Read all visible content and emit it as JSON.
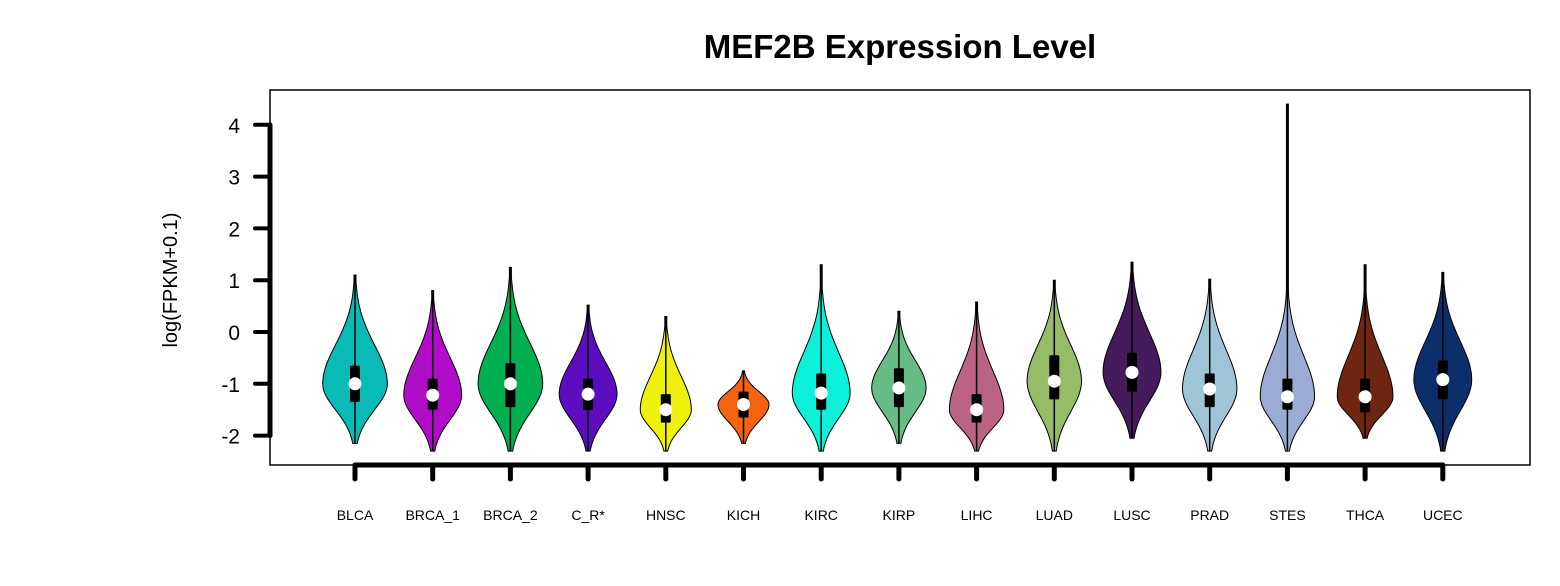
{
  "chart_data": {
    "type": "violin",
    "title": "MEF2B Expression Level",
    "xlabel": "",
    "ylabel": "log(FPKM+0.1)",
    "ylim": [
      -2.6,
      4.65
    ],
    "yticks": [
      -2,
      -1,
      0,
      1,
      2,
      3,
      4
    ],
    "ytick_labels": [
      "-2",
      "-1",
      "0",
      "1",
      "2",
      "3",
      "4"
    ],
    "grid": false,
    "categories": [
      "BLCA",
      "BRCA_1",
      "BRCA_2",
      "C_R*",
      "HNSC",
      "KICH",
      "KIRC",
      "KIRP",
      "LIHC",
      "LUAD",
      "LUSC",
      "PRAD",
      "STES",
      "THCA",
      "UCEC"
    ],
    "series": [
      {
        "category": "BLCA",
        "color": "#0ABAB5",
        "min": -2.15,
        "max": 1.1,
        "q1": -1.35,
        "median": -1.0,
        "q3": -0.65,
        "width": 0.95
      },
      {
        "category": "BRCA_1",
        "color": "#B10DC9",
        "min": -2.3,
        "max": 0.8,
        "q1": -1.5,
        "median": -1.22,
        "q3": -0.9,
        "width": 0.85
      },
      {
        "category": "BRCA_2",
        "color": "#00B050",
        "min": -2.3,
        "max": 1.25,
        "q1": -1.45,
        "median": -1.0,
        "q3": -0.6,
        "width": 0.95
      },
      {
        "category": "C_R*",
        "color": "#5C0DBF",
        "min": -2.3,
        "max": 0.52,
        "q1": -1.5,
        "median": -1.2,
        "q3": -0.9,
        "width": 0.85
      },
      {
        "category": "HNSC",
        "color": "#EEF00D",
        "min": -2.3,
        "max": 0.3,
        "q1": -1.75,
        "median": -1.5,
        "q3": -1.2,
        "width": 0.75
      },
      {
        "category": "KICH",
        "color": "#F36312",
        "min": -2.15,
        "max": -0.75,
        "q1": -1.65,
        "median": -1.4,
        "q3": -1.15,
        "width": 0.75
      },
      {
        "category": "KIRC",
        "color": "#0CEFD9",
        "min": -2.3,
        "max": 1.3,
        "q1": -1.5,
        "median": -1.18,
        "q3": -0.8,
        "width": 0.85
      },
      {
        "category": "KIRP",
        "color": "#66BB86",
        "min": -2.15,
        "max": 0.4,
        "q1": -1.45,
        "median": -1.08,
        "q3": -0.7,
        "width": 0.8
      },
      {
        "category": "LIHC",
        "color": "#BB6384",
        "min": -2.3,
        "max": 0.58,
        "q1": -1.75,
        "median": -1.5,
        "q3": -1.2,
        "width": 0.8
      },
      {
        "category": "LUAD",
        "color": "#96BC67",
        "min": -2.3,
        "max": 1.0,
        "q1": -1.3,
        "median": -0.95,
        "q3": -0.45,
        "width": 0.8
      },
      {
        "category": "LUSC",
        "color": "#451B5C",
        "min": -2.05,
        "max": 1.35,
        "q1": -1.15,
        "median": -0.78,
        "q3": -0.4,
        "width": 0.85
      },
      {
        "category": "PRAD",
        "color": "#9FC4D7",
        "min": -2.3,
        "max": 1.02,
        "q1": -1.45,
        "median": -1.1,
        "q3": -0.8,
        "width": 0.8
      },
      {
        "category": "STES",
        "color": "#9AACD3",
        "min": -2.3,
        "max": 4.4,
        "q1": -1.5,
        "median": -1.25,
        "q3": -0.9,
        "width": 0.8
      },
      {
        "category": "THCA",
        "color": "#6E2511",
        "min": -2.05,
        "max": 1.3,
        "q1": -1.55,
        "median": -1.25,
        "q3": -0.9,
        "width": 0.82
      },
      {
        "category": "UCEC",
        "color": "#0C2F6B",
        "min": -2.3,
        "max": 1.15,
        "q1": -1.3,
        "median": -0.92,
        "q3": -0.55,
        "width": 0.85
      }
    ]
  }
}
